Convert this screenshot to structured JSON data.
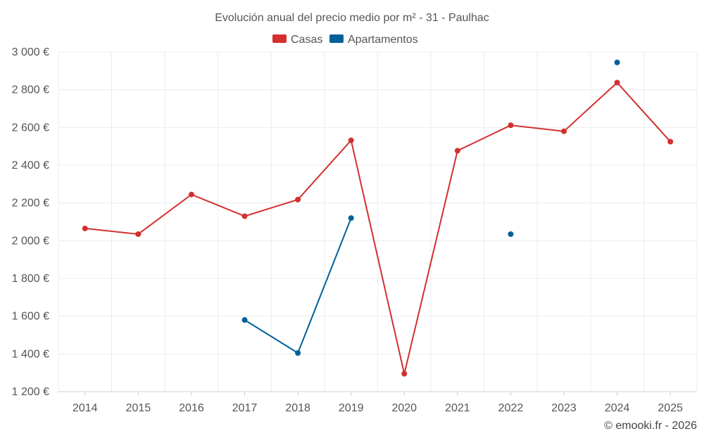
{
  "chart_data": {
    "type": "line",
    "title": "Evolución anual del precio medio por m² - 31 - Paulhac",
    "categories": [
      "2014",
      "2015",
      "2016",
      "2017",
      "2018",
      "2019",
      "2020",
      "2021",
      "2022",
      "2023",
      "2024",
      "2025"
    ],
    "y_ticks": [
      "1 200 €",
      "1 400 €",
      "1 600 €",
      "1 800 €",
      "2 000 €",
      "2 200 €",
      "2 400 €",
      "2 600 €",
      "2 800 €",
      "3 000 €"
    ],
    "y_tick_values": [
      1200,
      1400,
      1600,
      1800,
      2000,
      2200,
      2400,
      2600,
      2800,
      3000
    ],
    "ylim": [
      1200,
      3000
    ],
    "grid": true,
    "legend_position": "top-center",
    "series": [
      {
        "name": "Casas",
        "color": "#d32f2f",
        "values": [
          2065,
          2035,
          2245,
          2130,
          2218,
          2532,
          1295,
          2477,
          2612,
          2580,
          2838,
          2525
        ]
      },
      {
        "name": "Apartamentos",
        "color": "#01609a",
        "values": [
          null,
          null,
          null,
          1580,
          1405,
          2120,
          null,
          null,
          2035,
          null,
          2945,
          null
        ]
      }
    ],
    "credit": "© emooki.fr - 2026"
  }
}
